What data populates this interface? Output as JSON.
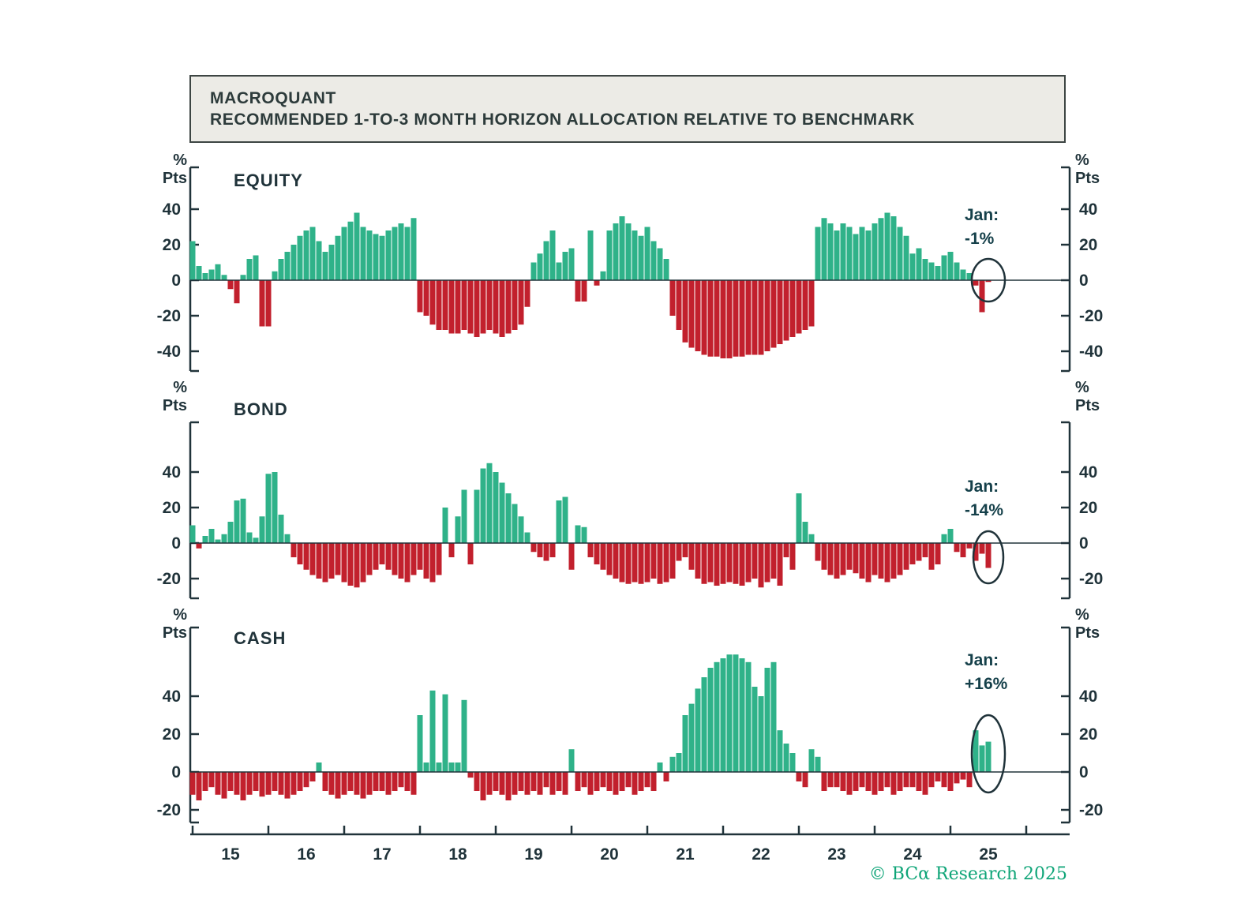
{
  "title": {
    "line1": "MACROQUANT",
    "line2": "RECOMMENDED 1-TO-3 MONTH HORIZON ALLOCATION RELATIVE TO BENCHMARK"
  },
  "y_unit": {
    "line1": "%",
    "line2": "Pts"
  },
  "footer": {
    "copyright": "© BCα Research 2025"
  },
  "colors": {
    "positive": "#2fb289",
    "negative": "#c2202d",
    "axis": "#20333a"
  },
  "x_axis": {
    "labels": [
      "15",
      "16",
      "17",
      "18",
      "19",
      "20",
      "21",
      "22",
      "23",
      "24",
      "25"
    ],
    "start": "2014-07",
    "end": "2025-01",
    "frequency": "monthly"
  },
  "chart_data": [
    {
      "type": "bar",
      "title": "EQUITY",
      "ylabel": "% Pts",
      "yticks": [
        40,
        20,
        0,
        -20,
        -40
      ],
      "ylim": [
        -50,
        50
      ],
      "annotation": {
        "label": "Jan:",
        "value": "-1%"
      },
      "x_start": "2014-07",
      "x_end": "2025-01",
      "values": [
        22,
        8,
        4,
        6,
        9,
        3,
        -5,
        -13,
        3,
        12,
        14,
        -26,
        -26,
        5,
        12,
        16,
        20,
        25,
        28,
        30,
        22,
        16,
        20,
        25,
        30,
        33,
        38,
        30,
        28,
        26,
        25,
        28,
        30,
        32,
        30,
        35,
        -18,
        -20,
        -25,
        -28,
        -28,
        -30,
        -30,
        -28,
        -30,
        -32,
        -30,
        -28,
        -30,
        -32,
        -30,
        -28,
        -25,
        -15,
        10,
        15,
        22,
        28,
        10,
        16,
        18,
        -12,
        -12,
        28,
        -3,
        5,
        28,
        32,
        36,
        32,
        28,
        25,
        30,
        22,
        18,
        12,
        -20,
        -28,
        -35,
        -38,
        -40,
        -42,
        -43,
        -43,
        -44,
        -44,
        -43,
        -43,
        -42,
        -42,
        -42,
        -40,
        -38,
        -36,
        -34,
        -32,
        -30,
        -28,
        -26,
        30,
        35,
        32,
        28,
        32,
        30,
        26,
        30,
        28,
        32,
        35,
        38,
        36,
        30,
        25,
        15,
        18,
        12,
        10,
        8,
        14,
        16,
        10,
        6,
        4,
        -3,
        -18,
        -1
      ]
    },
    {
      "type": "bar",
      "title": "BOND",
      "ylabel": "% Pts",
      "yticks": [
        40,
        20,
        0,
        -20
      ],
      "ylim": [
        -35,
        55
      ],
      "annotation": {
        "label": "Jan:",
        "value": "-14%"
      },
      "x_start": "2014-07",
      "x_end": "2025-01",
      "values": [
        10,
        -3,
        4,
        8,
        2,
        5,
        12,
        24,
        25,
        6,
        3,
        15,
        39,
        40,
        16,
        5,
        -8,
        -12,
        -15,
        -18,
        -20,
        -22,
        -20,
        -18,
        -22,
        -24,
        -25,
        -22,
        -18,
        -15,
        -12,
        -15,
        -18,
        -20,
        -22,
        -18,
        -15,
        -20,
        -22,
        -18,
        20,
        -8,
        15,
        30,
        -12,
        30,
        42,
        45,
        40,
        34,
        28,
        22,
        15,
        6,
        -5,
        -8,
        -10,
        -8,
        24,
        26,
        -15,
        10,
        9,
        -8,
        -12,
        -15,
        -18,
        -20,
        -22,
        -23,
        -22,
        -23,
        -22,
        -20,
        -23,
        -22,
        -20,
        -10,
        -8,
        -15,
        -20,
        -23,
        -22,
        -24,
        -23,
        -22,
        -23,
        -24,
        -22,
        -20,
        -25,
        -22,
        -20,
        -24,
        -8,
        -15,
        28,
        12,
        5,
        -10,
        -15,
        -18,
        -20,
        -18,
        -15,
        -17,
        -20,
        -22,
        -18,
        -20,
        -22,
        -20,
        -18,
        -15,
        -12,
        -10,
        -8,
        -15,
        -12,
        5,
        8,
        -5,
        -8,
        -3,
        -10,
        -6,
        -14
      ]
    },
    {
      "type": "bar",
      "title": "CASH",
      "ylabel": "% Pts",
      "yticks": [
        40,
        20,
        0,
        -20
      ],
      "ylim": [
        -30,
        75
      ],
      "annotation": {
        "label": "Jan:",
        "value": "+16%"
      },
      "x_start": "2014-07",
      "x_end": "2025-01",
      "values": [
        -12,
        -15,
        -10,
        -8,
        -12,
        -14,
        -10,
        -12,
        -15,
        -12,
        -10,
        -13,
        -12,
        -10,
        -12,
        -14,
        -12,
        -10,
        -8,
        -5,
        5,
        -10,
        -12,
        -14,
        -12,
        -10,
        -12,
        -14,
        -12,
        -10,
        -10,
        -12,
        -10,
        -8,
        -10,
        -12,
        30,
        5,
        43,
        5,
        41,
        5,
        5,
        38,
        -3,
        -10,
        -15,
        -12,
        -10,
        -12,
        -15,
        -12,
        -10,
        -12,
        -10,
        -12,
        -8,
        -12,
        -10,
        -12,
        12,
        -10,
        -8,
        -12,
        -10,
        -8,
        -10,
        -12,
        -10,
        -8,
        -12,
        -10,
        -8,
        -10,
        5,
        -5,
        8,
        10,
        30,
        36,
        44,
        50,
        55,
        58,
        60,
        62,
        62,
        60,
        58,
        45,
        40,
        55,
        58,
        22,
        15,
        10,
        -5,
        -8,
        12,
        8,
        -10,
        -8,
        -8,
        -10,
        -12,
        -10,
        -8,
        -10,
        -12,
        -10,
        -8,
        -12,
        -10,
        -8,
        -8,
        -10,
        -12,
        -8,
        -5,
        -8,
        -10,
        -6,
        -4,
        -8,
        22,
        14,
        16
      ]
    }
  ]
}
